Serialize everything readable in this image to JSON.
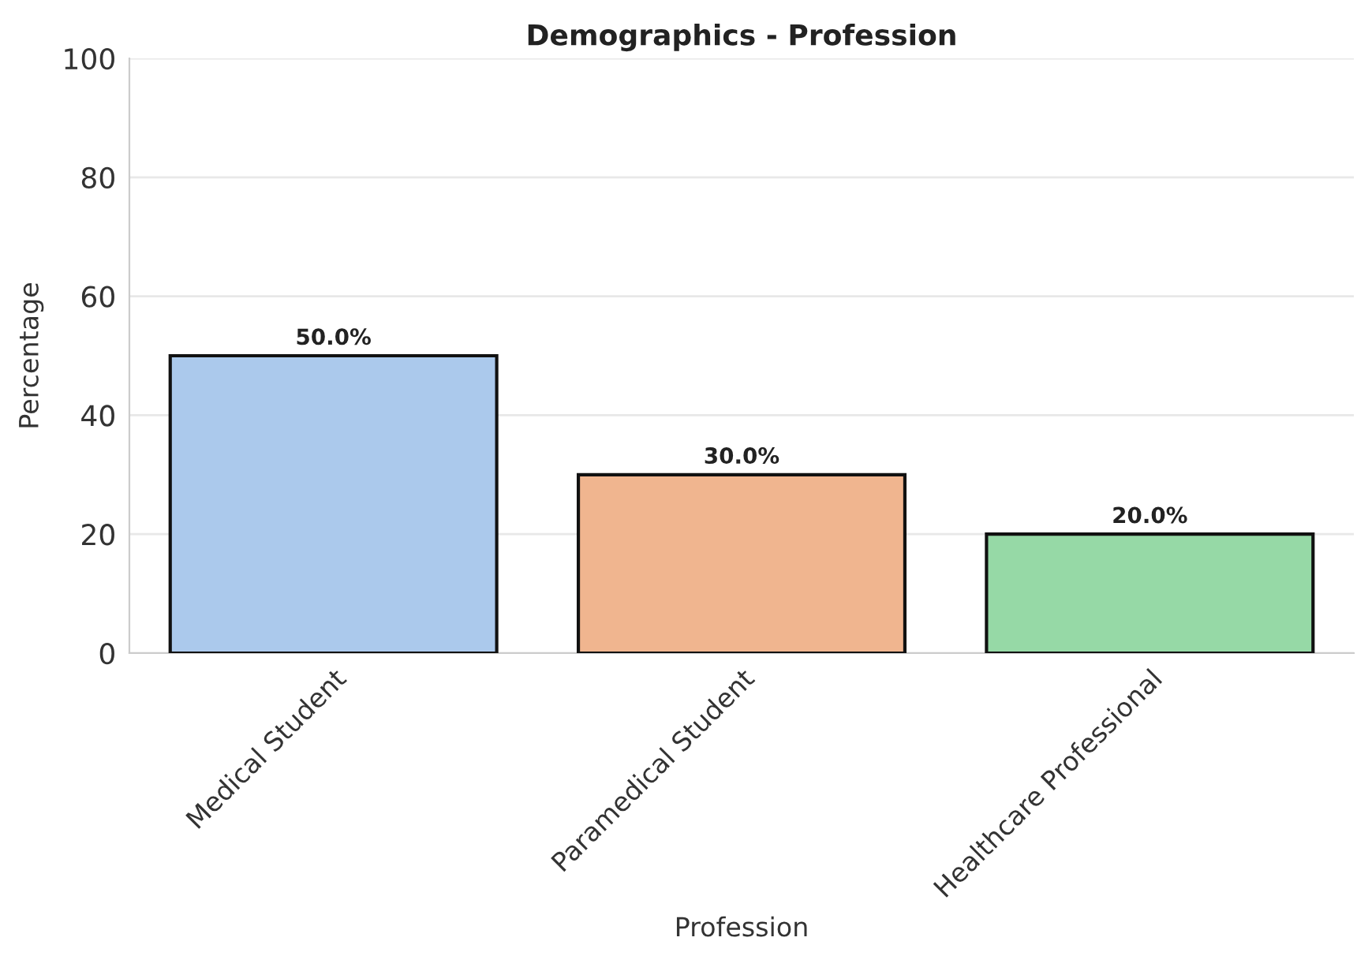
{
  "chart_data": {
    "type": "bar",
    "title": "Demographics - Profession",
    "xlabel": "Profession",
    "ylabel": "Percentage",
    "categories": [
      "Medical Student",
      "Paramedical Student",
      "Healthcare Professional"
    ],
    "values": [
      50.0,
      30.0,
      20.0
    ],
    "colors": [
      "#abc9ec",
      "#f0b58f",
      "#96d9a6"
    ],
    "value_labels": [
      "50.0%",
      "30.0%",
      "20.0%"
    ],
    "ylim": [
      0,
      100
    ],
    "yticks": [
      0,
      20,
      40,
      60,
      80,
      100
    ],
    "grid": "y"
  }
}
